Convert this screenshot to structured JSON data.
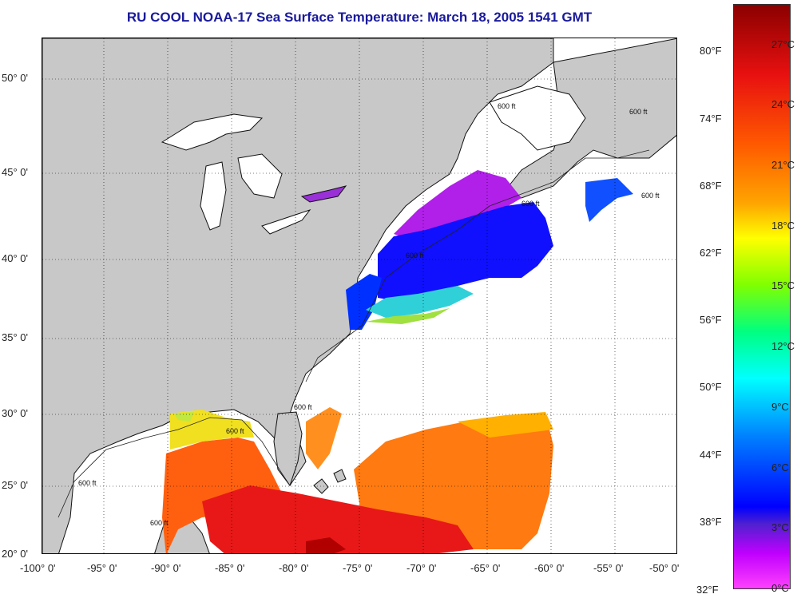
{
  "title": "RU COOL  NOAA-17  Sea Surface Temperature:  March 18, 2005 1541 GMT",
  "map": {
    "lat_labels": [
      "50° 0'",
      "45° 0'",
      "40° 0'",
      "35° 0'",
      "30° 0'",
      "25° 0'",
      "20° 0'"
    ],
    "lon_labels": [
      "-100° 0'",
      "-95° 0'",
      "-90° 0'",
      "-85° 0'",
      "-80° 0'",
      "-75° 0'",
      "-70° 0'",
      "-65° 0'",
      "-60° 0'",
      "-55° 0'",
      "-50° 0'"
    ],
    "depth_contour_label": "600 ft",
    "land_color": "#c8c8c8",
    "no_data_color": "#ffffff"
  },
  "colorbar": {
    "fahrenheit_labels": [
      "80°F",
      "74°F",
      "68°F",
      "62°F",
      "56°F",
      "50°F",
      "44°F",
      "38°F",
      "32°F"
    ],
    "celsius_labels": [
      "27°C",
      "24°C",
      "21°C",
      "18°C",
      "15°C",
      "12°C",
      "9°C",
      "6°C",
      "3°C",
      "0°C"
    ],
    "colors_top_to_bottom": [
      "#8b0000",
      "#e81010",
      "#ff5a00",
      "#ffa500",
      "#ffff00",
      "#80ff00",
      "#00ff80",
      "#00ffff",
      "#0080ff",
      "#0000ff",
      "#5020d0",
      "#c000ff",
      "#ff40ff"
    ]
  }
}
